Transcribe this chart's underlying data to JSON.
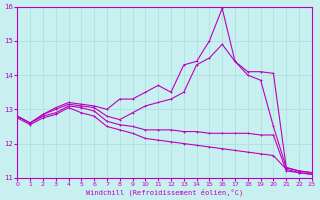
{
  "xlabel": "Windchill (Refroidissement éolien,°C)",
  "background_color": "#c8f0f0",
  "grid_color": "#b0e0e0",
  "line_color": "#bb00bb",
  "xlim": [
    0,
    23
  ],
  "ylim": [
    11,
    16
  ],
  "yticks": [
    11,
    12,
    13,
    14,
    15,
    16
  ],
  "xticks": [
    0,
    1,
    2,
    3,
    4,
    5,
    6,
    7,
    8,
    9,
    10,
    11,
    12,
    13,
    14,
    15,
    16,
    17,
    18,
    19,
    20,
    21,
    22,
    23
  ],
  "curves": [
    {
      "x": [
        0,
        1,
        2,
        3,
        4,
        5,
        6,
        7,
        8,
        9,
        10,
        11,
        12,
        13,
        14,
        15,
        16,
        17,
        18,
        19,
        20,
        21,
        22,
        23
      ],
      "y": [
        12.8,
        12.6,
        12.85,
        13.05,
        13.2,
        13.15,
        13.1,
        13.0,
        13.3,
        13.3,
        13.5,
        13.7,
        13.5,
        14.3,
        14.4,
        15.0,
        15.95,
        14.4,
        14.1,
        14.1,
        14.05,
        11.3,
        11.2,
        11.15
      ]
    },
    {
      "x": [
        0,
        1,
        2,
        3,
        4,
        5,
        6,
        7,
        8,
        9,
        10,
        11,
        12,
        13,
        14,
        15,
        16,
        17,
        18,
        19,
        20,
        21,
        22,
        23
      ],
      "y": [
        12.8,
        12.6,
        12.85,
        13.0,
        13.15,
        13.1,
        13.05,
        12.8,
        12.7,
        12.9,
        13.1,
        13.2,
        13.3,
        13.5,
        14.3,
        14.5,
        14.9,
        14.4,
        14.0,
        13.85,
        12.5,
        11.3,
        11.2,
        11.15
      ]
    },
    {
      "x": [
        0,
        1,
        2,
        3,
        4,
        5,
        6,
        7,
        8,
        9,
        10,
        11,
        12,
        13,
        14,
        15,
        16,
        17,
        18,
        19,
        20,
        21,
        22,
        23
      ],
      "y": [
        12.8,
        12.6,
        12.8,
        12.9,
        13.1,
        13.05,
        12.95,
        12.65,
        12.55,
        12.5,
        12.4,
        12.4,
        12.4,
        12.35,
        12.35,
        12.3,
        12.3,
        12.3,
        12.3,
        12.25,
        12.25,
        11.2,
        11.15,
        11.1
      ]
    },
    {
      "x": [
        0,
        1,
        2,
        3,
        4,
        5,
        6,
        7,
        8,
        9,
        10,
        11,
        12,
        13,
        14,
        15,
        16,
        17,
        18,
        19,
        20,
        21,
        22,
        23
      ],
      "y": [
        12.75,
        12.55,
        12.75,
        12.85,
        13.05,
        12.9,
        12.8,
        12.5,
        12.4,
        12.3,
        12.15,
        12.1,
        12.05,
        12.0,
        11.95,
        11.9,
        11.85,
        11.8,
        11.75,
        11.7,
        11.65,
        11.25,
        11.15,
        11.1
      ]
    }
  ]
}
